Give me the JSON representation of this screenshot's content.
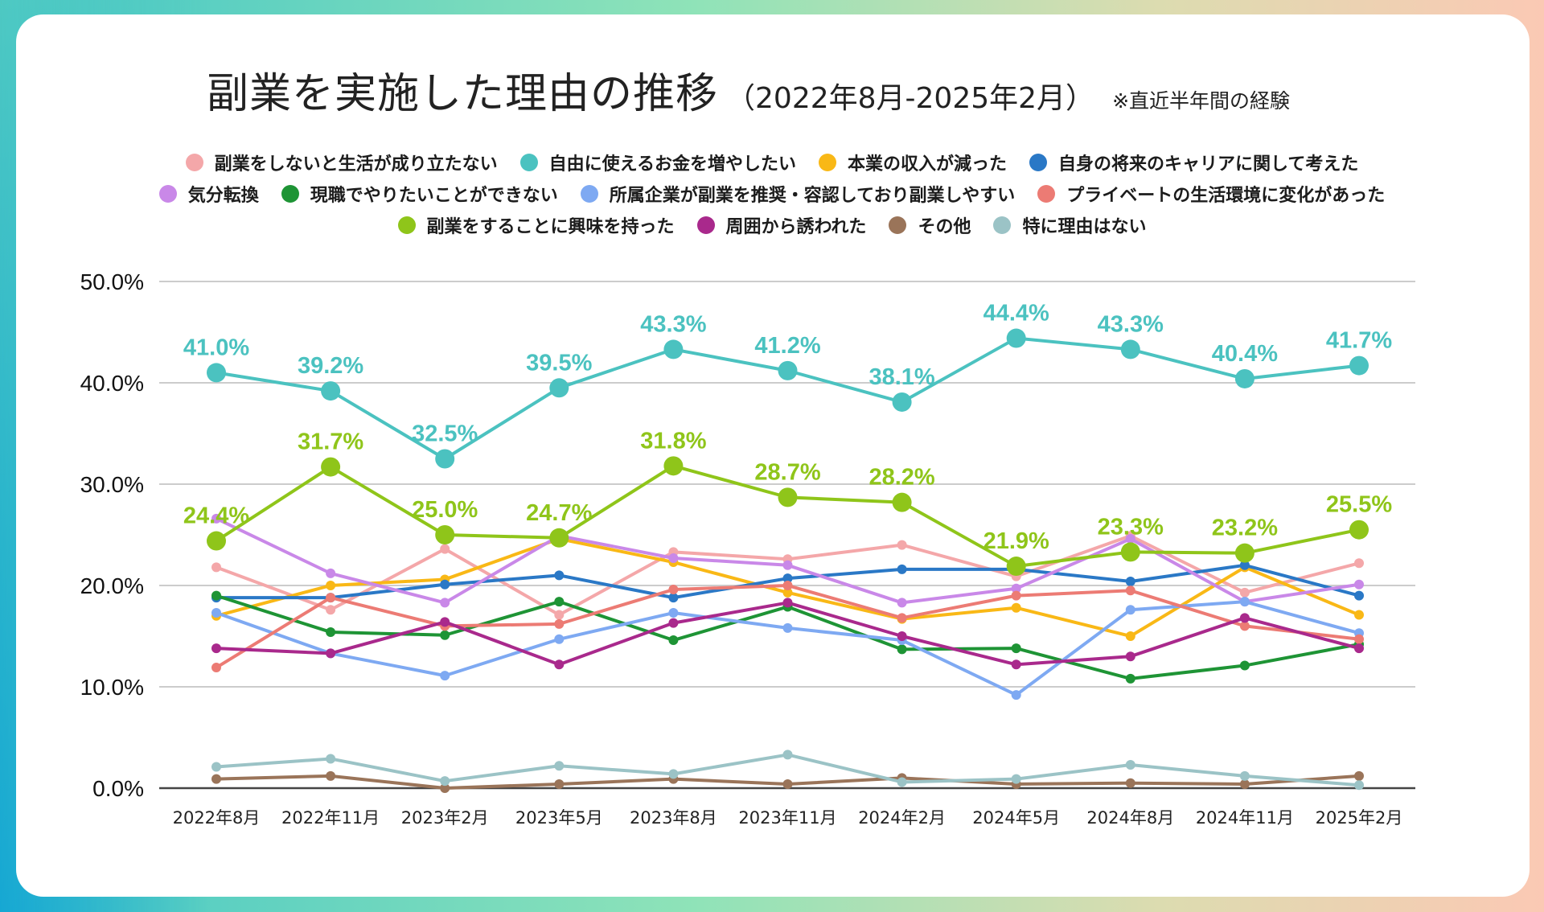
{
  "title": {
    "main": "副業を実施した理由の推移",
    "range": "（2022年8月-2025年2月）",
    "note": "※直近半年間の経験"
  },
  "chart_data": {
    "type": "line",
    "title": "副業を実施した理由の推移（2022年8月-2025年2月）※直近半年間の経験",
    "xlabel": "",
    "ylabel": "",
    "ylim": [
      0,
      50
    ],
    "yticks": [
      "0.0%",
      "10.0%",
      "20.0%",
      "30.0%",
      "40.0%",
      "50.0%"
    ],
    "ytick_values": [
      0,
      10,
      20,
      30,
      40,
      50
    ],
    "grid": true,
    "legend_position": "top",
    "categories": [
      "2022年8月",
      "2022年11月",
      "2023年2月",
      "2023年5月",
      "2023年8月",
      "2023年11月",
      "2024年2月",
      "2024年5月",
      "2024年8月",
      "2024年11月",
      "2025年2月"
    ],
    "series": [
      {
        "name": "副業をしないと生活が成り立たない",
        "color": "#f4a7a9",
        "values": [
          21.8,
          17.6,
          23.6,
          17.1,
          23.3,
          22.6,
          24.0,
          20.9,
          24.9,
          19.3,
          22.2
        ]
      },
      {
        "name": "自由に使えるお金を増やしたい",
        "color": "#4bc2c0",
        "highlight": true,
        "labels": true,
        "values": [
          41.0,
          39.2,
          32.5,
          39.5,
          43.3,
          41.2,
          38.1,
          44.4,
          43.3,
          40.4,
          41.7
        ]
      },
      {
        "name": "本業の収入が減った",
        "color": "#f9b816",
        "values": [
          17.0,
          20.0,
          20.6,
          24.6,
          22.3,
          19.3,
          16.7,
          17.8,
          15.0,
          21.8,
          17.1
        ]
      },
      {
        "name": "自身の将来のキャリアに関して考えた",
        "color": "#2a78c6",
        "values": [
          18.8,
          18.8,
          20.1,
          21.0,
          18.8,
          20.7,
          21.6,
          21.6,
          20.4,
          22.0,
          19.0
        ]
      },
      {
        "name": "気分転換",
        "color": "#c988e8",
        "values": [
          26.6,
          21.2,
          18.3,
          24.9,
          22.7,
          22.0,
          18.3,
          19.7,
          24.6,
          18.4,
          20.1
        ]
      },
      {
        "name": "現職でやりたいことができない",
        "color": "#1e9435",
        "values": [
          19.0,
          15.4,
          15.1,
          18.4,
          14.6,
          17.9,
          13.7,
          13.8,
          10.8,
          12.1,
          14.2
        ]
      },
      {
        "name": "所属企業が副業を推奨・容認しており副業しやすい",
        "color": "#7ea9f2",
        "values": [
          17.3,
          13.3,
          11.1,
          14.7,
          17.3,
          15.8,
          14.6,
          9.2,
          17.6,
          18.4,
          15.3
        ]
      },
      {
        "name": "プライベートの生活環境に変化があった",
        "color": "#ec7b74",
        "values": [
          11.9,
          18.8,
          16.0,
          16.2,
          19.6,
          20.0,
          16.8,
          19.0,
          19.5,
          16.0,
          14.7
        ]
      },
      {
        "name": "副業をすることに興味を持った",
        "color": "#8fc51a",
        "highlight": true,
        "labels": true,
        "values": [
          24.4,
          31.7,
          25.0,
          24.7,
          31.8,
          28.7,
          28.2,
          21.9,
          23.3,
          23.2,
          25.5
        ]
      },
      {
        "name": "周囲から誘われた",
        "color": "#a9298c",
        "values": [
          13.8,
          13.3,
          16.4,
          12.2,
          16.3,
          18.3,
          15.0,
          12.2,
          13.0,
          16.8,
          13.8
        ]
      },
      {
        "name": "その他",
        "color": "#9a7459",
        "values": [
          0.9,
          1.2,
          0.0,
          0.4,
          0.9,
          0.4,
          1.0,
          0.4,
          0.5,
          0.4,
          1.2
        ]
      },
      {
        "name": "特に理由はない",
        "color": "#9bc3c6",
        "values": [
          2.1,
          2.9,
          0.7,
          2.2,
          1.4,
          3.3,
          0.6,
          0.9,
          2.3,
          1.2,
          0.3
        ]
      }
    ],
    "data_labels": {
      "自由に使えるお金を増やしたい": [
        "41.0%",
        "39.2%",
        "32.5%",
        "39.5%",
        "43.3%",
        "41.2%",
        "38.1%",
        "44.4%",
        "43.3%",
        "40.4%",
        "41.7%"
      ],
      "副業をすることに興味を持った": [
        "24.4%",
        "31.7%",
        "25.0%",
        "24.7%",
        "31.8%",
        "28.7%",
        "28.2%",
        "21.9%",
        "23.3%",
        "23.2%",
        "25.5%"
      ]
    }
  },
  "legend_rows": [
    [
      0,
      1,
      2,
      3
    ],
    [
      4,
      5,
      6,
      7
    ],
    [
      8,
      9,
      10,
      11
    ]
  ]
}
